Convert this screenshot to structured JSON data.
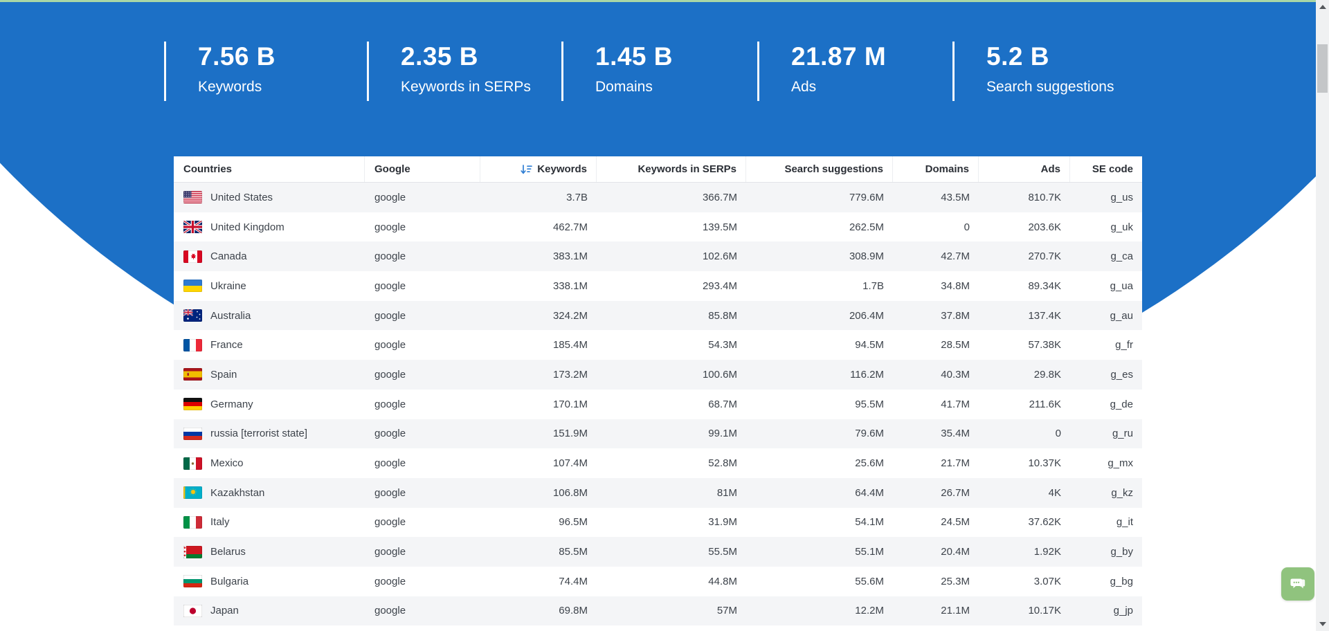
{
  "colors": {
    "accent_blue": "#1c70c6",
    "top_line_green": "#a9d7a6",
    "chat_button_green": "#90c37e",
    "row_stripe": "#f4f5f7"
  },
  "icons": {
    "sort": "sort-descending-icon",
    "chat": "chat-bubbles-icon"
  },
  "stats": [
    {
      "value": "7.56 B",
      "label": "Keywords"
    },
    {
      "value": "2.35 B",
      "label": "Keywords in SERPs"
    },
    {
      "value": "1.45 B",
      "label": "Domains"
    },
    {
      "value": "21.87 M",
      "label": "Ads"
    },
    {
      "value": "5.2 B",
      "label": "Search suggestions"
    }
  ],
  "table": {
    "columns": [
      {
        "key": "country",
        "label": "Countries",
        "align": "left"
      },
      {
        "key": "google",
        "label": "Google",
        "align": "left"
      },
      {
        "key": "keywords",
        "label": "Keywords",
        "align": "right",
        "sorted": "desc"
      },
      {
        "key": "serps",
        "label": "Keywords in SERPs",
        "align": "right"
      },
      {
        "key": "suggestions",
        "label": "Search suggestions",
        "align": "right"
      },
      {
        "key": "domains",
        "label": "Domains",
        "align": "right"
      },
      {
        "key": "ads",
        "label": "Ads",
        "align": "right"
      },
      {
        "key": "se_code",
        "label": "SE code",
        "align": "right"
      }
    ],
    "rows": [
      {
        "flag": "us",
        "country": "United States",
        "google": "google",
        "keywords": "3.7B",
        "serps": "366.7M",
        "suggestions": "779.6M",
        "domains": "43.5M",
        "ads": "810.7K",
        "se_code": "g_us"
      },
      {
        "flag": "uk",
        "country": "United Kingdom",
        "google": "google",
        "keywords": "462.7M",
        "serps": "139.5M",
        "suggestions": "262.5M",
        "domains": "0",
        "ads": "203.6K",
        "se_code": "g_uk"
      },
      {
        "flag": "ca",
        "country": "Canada",
        "google": "google",
        "keywords": "383.1M",
        "serps": "102.6M",
        "suggestions": "308.9M",
        "domains": "42.7M",
        "ads": "270.7K",
        "se_code": "g_ca"
      },
      {
        "flag": "ua",
        "country": "Ukraine",
        "google": "google",
        "keywords": "338.1M",
        "serps": "293.4M",
        "suggestions": "1.7B",
        "domains": "34.8M",
        "ads": "89.34K",
        "se_code": "g_ua"
      },
      {
        "flag": "au",
        "country": "Australia",
        "google": "google",
        "keywords": "324.2M",
        "serps": "85.8M",
        "suggestions": "206.4M",
        "domains": "37.8M",
        "ads": "137.4K",
        "se_code": "g_au"
      },
      {
        "flag": "fr",
        "country": "France",
        "google": "google",
        "keywords": "185.4M",
        "serps": "54.3M",
        "suggestions": "94.5M",
        "domains": "28.5M",
        "ads": "57.38K",
        "se_code": "g_fr"
      },
      {
        "flag": "es",
        "country": "Spain",
        "google": "google",
        "keywords": "173.2M",
        "serps": "100.6M",
        "suggestions": "116.2M",
        "domains": "40.3M",
        "ads": "29.8K",
        "se_code": "g_es"
      },
      {
        "flag": "de",
        "country": "Germany",
        "google": "google",
        "keywords": "170.1M",
        "serps": "68.7M",
        "suggestions": "95.5M",
        "domains": "41.7M",
        "ads": "211.6K",
        "se_code": "g_de"
      },
      {
        "flag": "ru",
        "country": "russia [terrorist state]",
        "google": "google",
        "keywords": "151.9M",
        "serps": "99.1M",
        "suggestions": "79.6M",
        "domains": "35.4M",
        "ads": "0",
        "se_code": "g_ru"
      },
      {
        "flag": "mx",
        "country": "Mexico",
        "google": "google",
        "keywords": "107.4M",
        "serps": "52.8M",
        "suggestions": "25.6M",
        "domains": "21.7M",
        "ads": "10.37K",
        "se_code": "g_mx"
      },
      {
        "flag": "kz",
        "country": "Kazakhstan",
        "google": "google",
        "keywords": "106.8M",
        "serps": "81M",
        "suggestions": "64.4M",
        "domains": "26.7M",
        "ads": "4K",
        "se_code": "g_kz"
      },
      {
        "flag": "it",
        "country": "Italy",
        "google": "google",
        "keywords": "96.5M",
        "serps": "31.9M",
        "suggestions": "54.1M",
        "domains": "24.5M",
        "ads": "37.62K",
        "se_code": "g_it"
      },
      {
        "flag": "by",
        "country": "Belarus",
        "google": "google",
        "keywords": "85.5M",
        "serps": "55.5M",
        "suggestions": "55.1M",
        "domains": "20.4M",
        "ads": "1.92K",
        "se_code": "g_by"
      },
      {
        "flag": "bg",
        "country": "Bulgaria",
        "google": "google",
        "keywords": "74.4M",
        "serps": "44.8M",
        "suggestions": "55.6M",
        "domains": "25.3M",
        "ads": "3.07K",
        "se_code": "g_bg"
      },
      {
        "flag": "jp",
        "country": "Japan",
        "google": "google",
        "keywords": "69.8M",
        "serps": "57M",
        "suggestions": "12.2M",
        "domains": "21.1M",
        "ads": "10.17K",
        "se_code": "g_jp"
      }
    ]
  }
}
